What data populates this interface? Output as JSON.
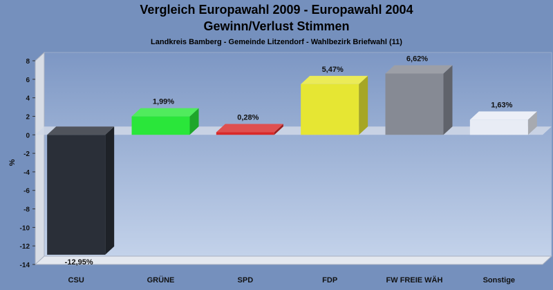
{
  "chart_data": {
    "type": "bar",
    "title": "Vergleich Europawahl 2009 - Europawahl 2004",
    "subtitle": "Gewinn/Verlust Stimmen",
    "subsubtitle": "Landkreis Bamberg - Gemeinde Litzendorf - Wahlbezirk Briefwahl (11)",
    "xlabel": "",
    "ylabel": "%",
    "ylim": [
      -14,
      8
    ],
    "yticks": [
      8,
      6,
      4,
      2,
      0,
      -2,
      -4,
      -6,
      -8,
      -10,
      -12,
      -14
    ],
    "categories": [
      "CSU",
      "GRÜNE",
      "SPD",
      "FDP",
      "FW FREIE WÄH",
      "Sonstige"
    ],
    "values": [
      -12.95,
      1.99,
      0.28,
      5.47,
      6.62,
      1.63
    ],
    "value_labels": [
      "-12,95%",
      "1,99%",
      "0,28%",
      "5,47%",
      "6,62%",
      "1,63%"
    ],
    "colors": [
      "#2a2f38",
      "#2ae63a",
      "#d82a2a",
      "#e6e633",
      "#868a94",
      "#e8ecf5"
    ],
    "grid": false,
    "legend": "none"
  }
}
